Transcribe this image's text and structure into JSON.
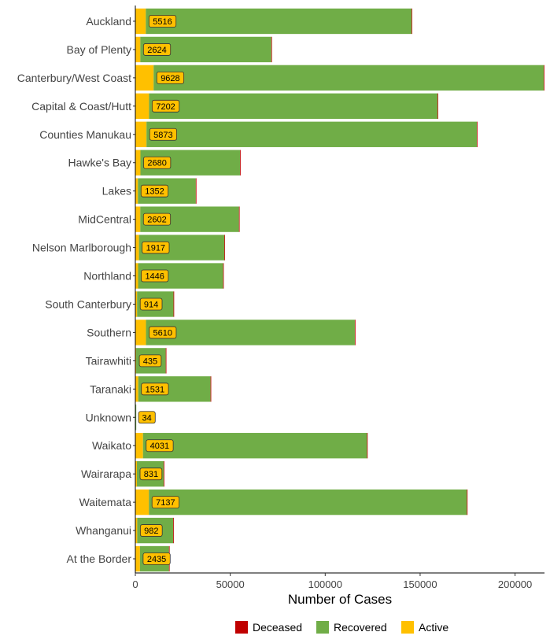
{
  "chart_data": {
    "type": "bar",
    "orientation": "horizontal",
    "stacked": true,
    "xlabel": "Number of Cases",
    "ylabel": "",
    "xlim": [
      0,
      215500
    ],
    "xticks": [
      0,
      50000,
      100000,
      150000,
      200000
    ],
    "grid": false,
    "legend_position": "bottom",
    "categories": [
      "Auckland",
      "Bay of Plenty",
      "Canterbury/West Coast",
      "Capital & Coast/Hutt",
      "Counties Manukau",
      "Hawke's Bay",
      "Lakes",
      "MidCentral",
      "Nelson Marlborough",
      "Northland",
      "South Canterbury",
      "Southern",
      "Tairawhiti",
      "Taranaki",
      "Unknown",
      "Waikato",
      "Wairarapa",
      "Waitemata",
      "Whanganui",
      "At the Border"
    ],
    "series": [
      {
        "name": "Deceased",
        "color": "#c00000",
        "values": [
          60,
          10,
          300,
          300,
          50,
          200,
          10,
          20,
          10,
          10,
          5,
          30,
          5,
          250,
          0,
          300,
          5,
          40,
          10,
          5
        ]
      },
      {
        "name": "Recovered",
        "color": "#70ad47",
        "values": [
          140000,
          69000,
          205500,
          152000,
          174000,
          52500,
          30500,
          52000,
          45000,
          44800,
          19200,
          110000,
          15600,
          38100,
          450,
          118000,
          14100,
          167500,
          19000,
          15300
        ]
      },
      {
        "name": "Active",
        "color": "#ffc000",
        "values": [
          5516,
          2624,
          9628,
          7202,
          5873,
          2680,
          1352,
          2602,
          1917,
          1446,
          914,
          5610,
          435,
          1531,
          34,
          4031,
          831,
          7137,
          982,
          2435
        ]
      }
    ],
    "data_labels": [
      "5516",
      "2624",
      "9628",
      "7202",
      "5873",
      "2680",
      "1352",
      "2602",
      "1917",
      "1446",
      "914",
      "5610",
      "435",
      "1531",
      "34",
      "4031",
      "831",
      "7137",
      "982",
      "2435"
    ]
  }
}
